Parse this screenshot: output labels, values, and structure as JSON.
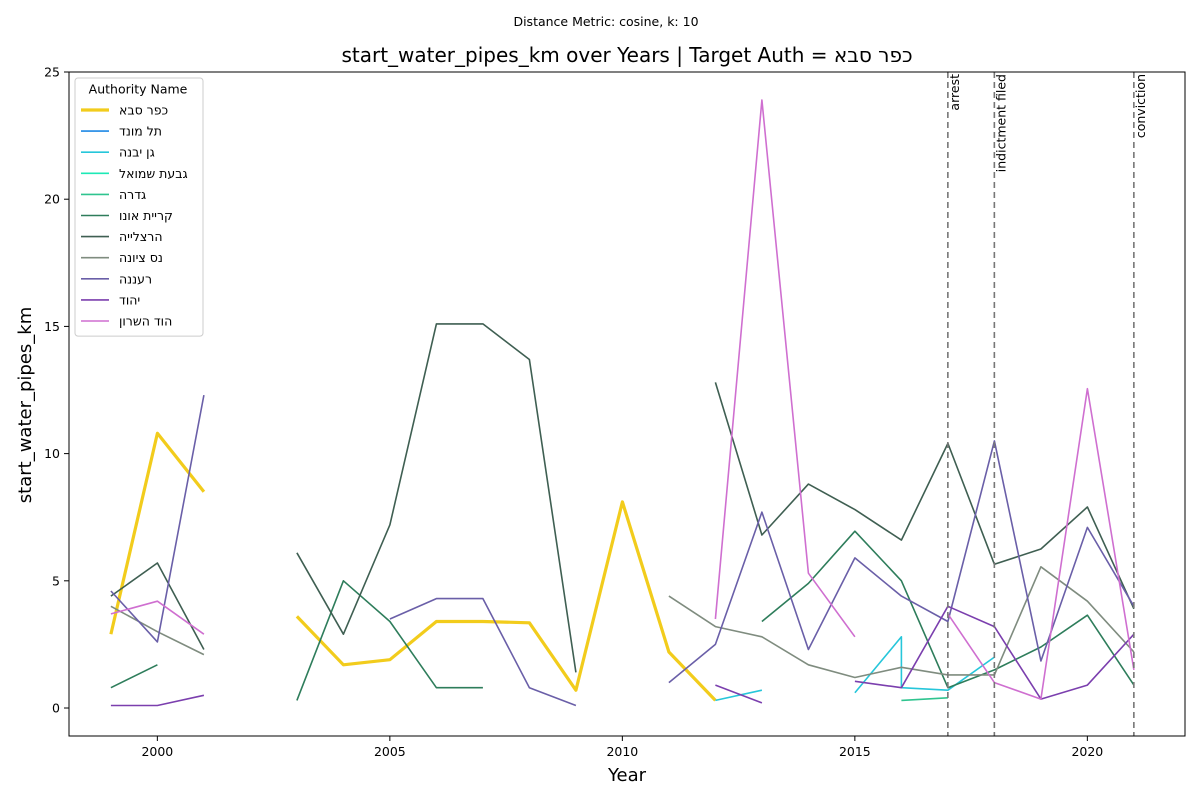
{
  "figure": {
    "suptitle": "Distance Metric: cosine, k: 10"
  },
  "chart_data": {
    "type": "line",
    "title": "start_water_pipes_km over Years | Target Auth = כפר סבא",
    "xlabel": "Year",
    "ylabel": "start_water_pipes_km",
    "xlim": [
      1998.1,
      2022.1
    ],
    "ylim": [
      -1.1,
      25
    ],
    "xticks": [
      2000,
      2005,
      2010,
      2015,
      2020
    ],
    "yticks": [
      0,
      5,
      10,
      15,
      20,
      25
    ],
    "grid": false,
    "legend": {
      "title": "Authority Name",
      "placement": "top-left"
    },
    "events": [
      {
        "label": "arrest",
        "x": 2017
      },
      {
        "label": "indictment filed",
        "x": 2018
      },
      {
        "label": "conviction",
        "x": 2021
      }
    ],
    "series": [
      {
        "name": "כפר סבא",
        "color": "#f2cc1c",
        "highlight": true,
        "points": [
          [
            1999,
            2.9
          ],
          [
            2000,
            10.8
          ],
          [
            2001,
            8.5
          ],
          [
            2003,
            3.6
          ],
          [
            2004,
            1.7
          ],
          [
            2005,
            1.9
          ],
          [
            2006,
            3.4
          ],
          [
            2007,
            3.4
          ],
          [
            2008,
            3.35
          ],
          [
            2009,
            0.7
          ],
          [
            2010,
            8.1
          ],
          [
            2011,
            2.2
          ],
          [
            2012,
            0.3
          ]
        ]
      },
      {
        "name": "תל מונד",
        "color": "#1e88e5",
        "highlight": false,
        "points": []
      },
      {
        "name": "גן יבנה",
        "color": "#26c6da",
        "highlight": false,
        "points": [
          [
            2012,
            0.3
          ],
          [
            2013,
            0.7
          ],
          [
            2015,
            0.6
          ],
          [
            2016,
            2.8
          ],
          [
            2016,
            0.8
          ],
          [
            2017,
            0.7
          ],
          [
            2018,
            2.0
          ]
        ]
      },
      {
        "name": "גבעת שמואל",
        "color": "#1de9b6",
        "highlight": false,
        "points": []
      },
      {
        "name": "גדרה",
        "color": "#2fc48f",
        "highlight": false,
        "points": [
          [
            2016,
            0.3
          ],
          [
            2017,
            0.4
          ]
        ]
      },
      {
        "name": "קריית אונו",
        "color": "#2e7d5b",
        "highlight": false,
        "points": [
          [
            1999,
            0.8
          ],
          [
            2000,
            1.7
          ],
          [
            2003,
            0.3
          ],
          [
            2004,
            5.0
          ],
          [
            2005,
            3.4
          ],
          [
            2006,
            0.8
          ],
          [
            2007,
            0.8
          ],
          [
            2013,
            3.4
          ],
          [
            2014,
            4.9
          ],
          [
            2015,
            6.95
          ],
          [
            2016,
            5.0
          ],
          [
            2017,
            0.8
          ],
          [
            2018,
            1.5
          ],
          [
            2019,
            2.4
          ],
          [
            2020,
            3.65
          ],
          [
            2021,
            0.9
          ]
        ]
      },
      {
        "name": "הרצלייה",
        "color": "#3f5f52",
        "highlight": false,
        "points": [
          [
            1999,
            4.4
          ],
          [
            2000,
            5.7
          ],
          [
            2001,
            2.3
          ],
          [
            2003,
            6.1
          ],
          [
            2004,
            2.9
          ],
          [
            2005,
            7.2
          ],
          [
            2006,
            15.1
          ],
          [
            2007,
            15.1
          ],
          [
            2008,
            13.7
          ],
          [
            2009,
            1.4
          ],
          [
            2012,
            12.8
          ],
          [
            2013,
            6.8
          ],
          [
            2014,
            8.8
          ],
          [
            2015,
            7.8
          ],
          [
            2016,
            6.6
          ],
          [
            2017,
            10.4
          ],
          [
            2018,
            5.65
          ],
          [
            2019,
            6.25
          ],
          [
            2020,
            7.9
          ],
          [
            2021,
            3.9
          ]
        ]
      },
      {
        "name": "נס ציונה",
        "color": "#7f8c7f",
        "highlight": false,
        "points": [
          [
            1999,
            4.0
          ],
          [
            2000,
            3.0
          ],
          [
            2001,
            2.1
          ],
          [
            2011,
            4.4
          ],
          [
            2012,
            3.2
          ],
          [
            2013,
            2.8
          ],
          [
            2014,
            1.7
          ],
          [
            2015,
            1.2
          ],
          [
            2016,
            1.6
          ],
          [
            2017,
            1.3
          ],
          [
            2018,
            1.3
          ],
          [
            2019,
            5.55
          ],
          [
            2020,
            4.2
          ],
          [
            2021,
            2.2
          ]
        ]
      },
      {
        "name": "רעננה",
        "color": "#6a5fa8",
        "highlight": false,
        "points": [
          [
            1999,
            4.6
          ],
          [
            2000,
            2.6
          ],
          [
            2001,
            12.3
          ],
          [
            2005,
            3.5
          ],
          [
            2006,
            4.3
          ],
          [
            2007,
            4.3
          ],
          [
            2008,
            0.8
          ],
          [
            2009,
            0.1
          ],
          [
            2011,
            1.0
          ],
          [
            2012,
            2.5
          ],
          [
            2013,
            7.7
          ],
          [
            2014,
            2.3
          ],
          [
            2015,
            5.9
          ],
          [
            2016,
            4.4
          ],
          [
            2017,
            3.4
          ],
          [
            2018,
            10.5
          ],
          [
            2019,
            1.85
          ],
          [
            2020,
            7.1
          ],
          [
            2021,
            4.0
          ]
        ]
      },
      {
        "name": "יהוד",
        "color": "#7b3fae",
        "highlight": false,
        "points": [
          [
            1999,
            0.1
          ],
          [
            2000,
            0.1
          ],
          [
            2001,
            0.5
          ],
          [
            2012,
            0.9
          ],
          [
            2013,
            0.2
          ],
          [
            2015,
            1.05
          ],
          [
            2016,
            0.8
          ],
          [
            2017,
            4.0
          ],
          [
            2018,
            3.2
          ],
          [
            2019,
            0.35
          ],
          [
            2020,
            0.9
          ],
          [
            2021,
            2.9
          ]
        ]
      },
      {
        "name": "הוד השרון",
        "color": "#cf6fd0",
        "highlight": false,
        "points": [
          [
            1999,
            3.7
          ],
          [
            2000,
            4.2
          ],
          [
            2001,
            2.9
          ],
          [
            2012,
            3.5
          ],
          [
            2013,
            23.9
          ],
          [
            2014,
            5.3
          ],
          [
            2015,
            2.8
          ],
          [
            2017,
            3.7
          ],
          [
            2018,
            1.0
          ],
          [
            2019,
            0.35
          ],
          [
            2020,
            12.55
          ],
          [
            2021,
            1.5
          ]
        ]
      }
    ]
  }
}
